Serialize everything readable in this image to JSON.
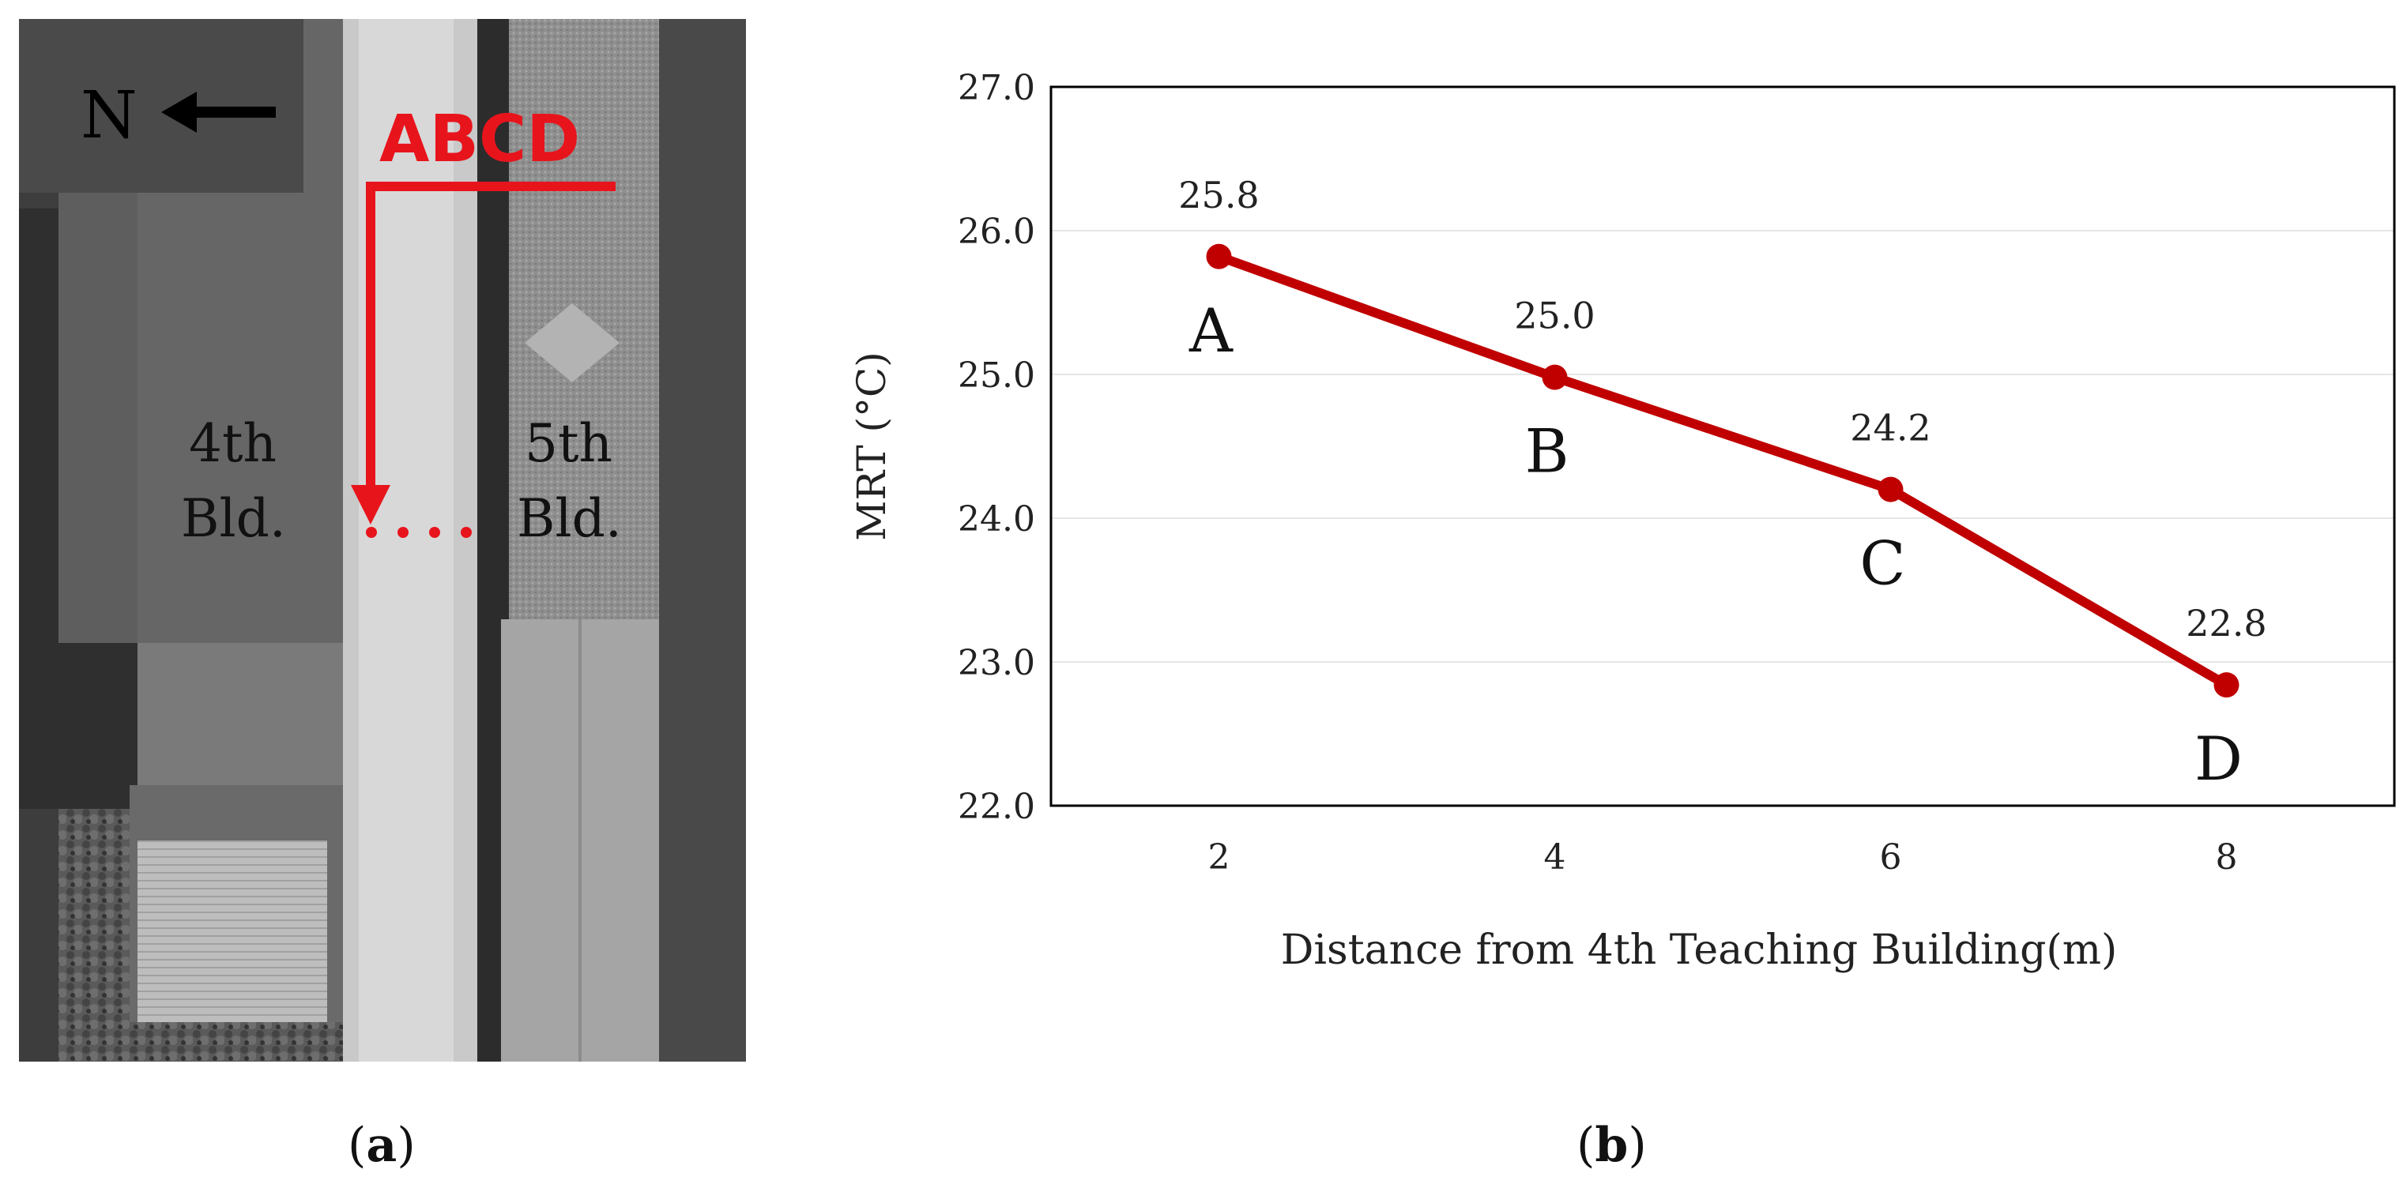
{
  "panel_a": {
    "label": "a",
    "north_label": "N",
    "points_label": "ABCD",
    "building_left_line1": "4th",
    "building_left_line2": "Bld.",
    "building_right_line1": "5th",
    "building_right_line2": "Bld."
  },
  "panel_b": {
    "label": "b"
  },
  "colors": {
    "series": "#c00000",
    "annotation": "#e8141c",
    "axis": "#000000",
    "grid": "#e6e6e6"
  },
  "chart_data": {
    "type": "line",
    "title": "",
    "xlabel": "Distance from 4th Teaching Building(m)",
    "ylabel": "MRT (°C)",
    "x": [
      2,
      4,
      6,
      8
    ],
    "xticks": [
      "2",
      "4",
      "6",
      "8"
    ],
    "xlim": [
      1,
      9
    ],
    "ylim": [
      22.0,
      27.0
    ],
    "yticks": [
      "22.0",
      "23.0",
      "24.0",
      "25.0",
      "26.0",
      "27.0"
    ],
    "grid": true,
    "series": [
      {
        "values": [
          25.82,
          24.98,
          24.2,
          22.84
        ],
        "data_labels": [
          "25.8",
          "25.0",
          "24.2",
          "22.8"
        ],
        "point_labels": [
          "A",
          "B",
          "C",
          "D"
        ]
      }
    ]
  }
}
